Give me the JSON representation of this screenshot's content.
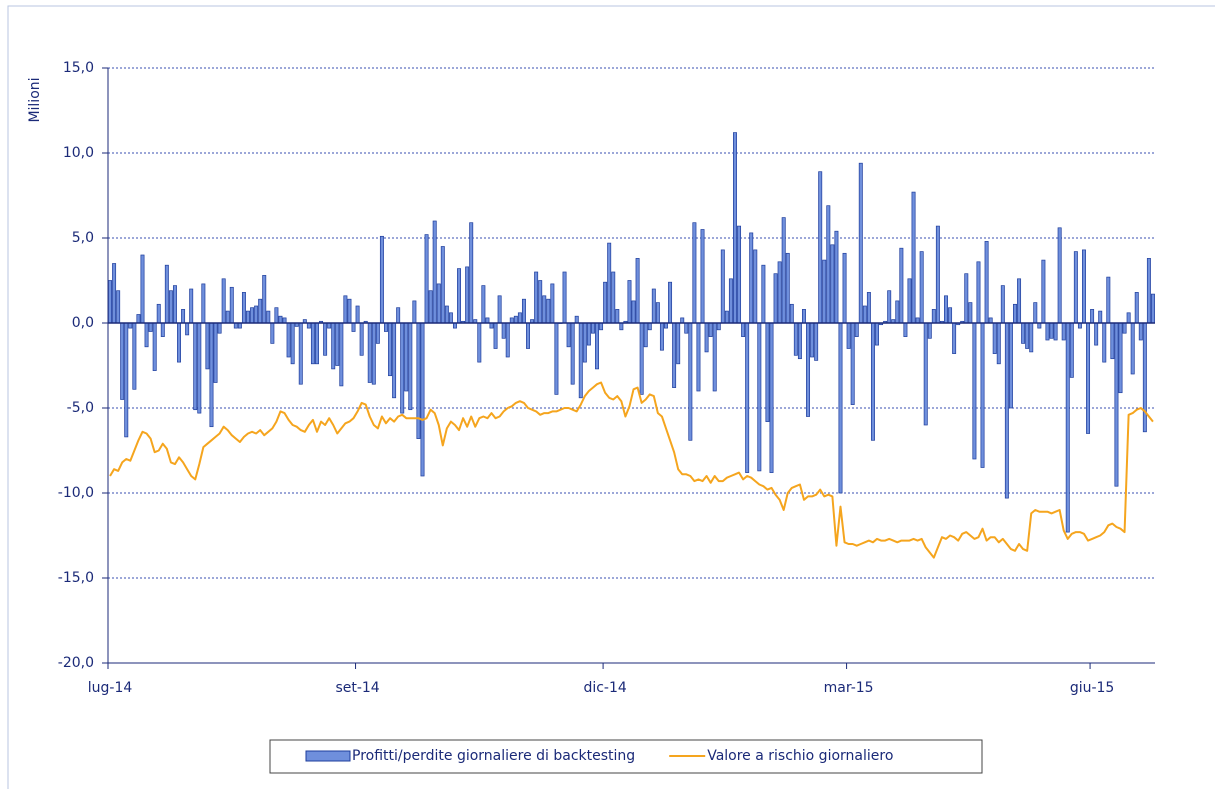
{
  "chart_data": {
    "type": "bar",
    "y_label": "Milioni",
    "ylim": [
      -20,
      15
    ],
    "yticks": [
      {
        "value": -20,
        "label": "-20,0"
      },
      {
        "value": -15,
        "label": "-15,0"
      },
      {
        "value": -10,
        "label": "-10,0"
      },
      {
        "value": -5,
        "label": "-5,0"
      },
      {
        "value": 0,
        "label": "0,0"
      },
      {
        "value": 5,
        "label": "5,0"
      },
      {
        "value": 10,
        "label": "10,0"
      },
      {
        "value": 15,
        "label": "15,0"
      }
    ],
    "grid": true,
    "legend": "bottom",
    "categories": [
      "lug-14",
      null,
      null,
      null,
      null,
      null,
      null,
      null,
      null,
      null,
      null,
      null,
      null,
      null,
      null,
      null,
      null,
      null,
      null,
      null,
      null,
      null,
      null,
      null,
      null,
      null,
      null,
      null,
      null,
      null,
      null,
      null,
      null,
      null,
      null,
      null,
      null,
      null,
      null,
      null,
      null,
      null,
      null,
      null,
      null,
      null,
      null,
      null,
      null,
      null,
      null,
      null,
      null,
      null,
      null,
      null,
      null,
      null,
      null,
      null,
      null,
      "set-14",
      null,
      null,
      null,
      null,
      null,
      null,
      null,
      null,
      null,
      null,
      null,
      null,
      null,
      null,
      null,
      null,
      null,
      null,
      null,
      null,
      null,
      null,
      null,
      null,
      null,
      null,
      null,
      null,
      null,
      null,
      null,
      null,
      null,
      null,
      null,
      null,
      null,
      null,
      null,
      null,
      null,
      null,
      null,
      null,
      null,
      null,
      null,
      null,
      null,
      null,
      null,
      null,
      null,
      null,
      null,
      null,
      null,
      null,
      null,
      null,
      "dic-14",
      null,
      null,
      null,
      null,
      null,
      null,
      null,
      null,
      null,
      null,
      null,
      null,
      null,
      null,
      null,
      null,
      null,
      null,
      null,
      null,
      null,
      null,
      null,
      null,
      null,
      null,
      null,
      null,
      null,
      null,
      null,
      null,
      null,
      null,
      null,
      null,
      null,
      null,
      null,
      null,
      null,
      null,
      null,
      null,
      null,
      null,
      null,
      null,
      null,
      null,
      null,
      null,
      null,
      null,
      null,
      null,
      null,
      null,
      null,
      "mar-15",
      null,
      null,
      null,
      null,
      null,
      null,
      null,
      null,
      null,
      null,
      null,
      null,
      null,
      null,
      null,
      null,
      null,
      null,
      null,
      null,
      null,
      null,
      null,
      null,
      null,
      null,
      null,
      null,
      null,
      null,
      null,
      null,
      null,
      null,
      null,
      null,
      null,
      null,
      null,
      null,
      null,
      null,
      null,
      null,
      null,
      null,
      null,
      null,
      null,
      null,
      null,
      null,
      null,
      null,
      null,
      null,
      null,
      null,
      null,
      "giu-15",
      null,
      null,
      null,
      null,
      null,
      null,
      null,
      null,
      null,
      null,
      null,
      null,
      null,
      null,
      null
    ],
    "series": [
      {
        "name": "Profitti/perdite giornaliere di backtesting",
        "type": "bar",
        "color": "#6f8fdc",
        "values": [
          2.5,
          3.5,
          1.9,
          -4.5,
          -6.7,
          -0.3,
          -3.9,
          0.5,
          4.0,
          -1.4,
          -0.5,
          -2.8,
          1.1,
          -0.8,
          3.4,
          1.9,
          2.2,
          -2.3,
          0.8,
          -0.7,
          2.0,
          -5.1,
          -5.3,
          2.3,
          -2.7,
          -6.1,
          -3.5,
          -0.6,
          2.6,
          0.7,
          2.1,
          -0.3,
          -0.3,
          1.8,
          0.7,
          0.9,
          1.0,
          1.4,
          2.8,
          0.7,
          -1.2,
          0.9,
          0.4,
          0.3,
          -2.0,
          -2.4,
          -0.2,
          -3.6,
          0.2,
          -0.3,
          -2.4,
          -2.4,
          0.1,
          -1.9,
          -0.3,
          -2.7,
          -2.5,
          -3.7,
          1.6,
          1.4,
          -0.5,
          1.0,
          -1.9,
          0.1,
          -3.5,
          -3.6,
          -1.2,
          5.1,
          -0.5,
          -3.1,
          -4.4,
          0.9,
          -5.3,
          -4.0,
          -5.1,
          1.3,
          -6.8,
          -9.0,
          5.2,
          1.9,
          6.0,
          2.3,
          4.5,
          1.0,
          0.6,
          -0.3,
          3.2,
          0.1,
          3.3,
          5.9,
          0.2,
          -2.3,
          2.2,
          0.3,
          -0.3,
          -1.5,
          1.6,
          -0.9,
          -2.0,
          0.3,
          0.4,
          0.6,
          1.4,
          -1.5,
          0.2,
          3.0,
          2.5,
          1.6,
          1.4,
          2.3,
          -4.2,
          0.0,
          3.0,
          -1.4,
          -3.6,
          0.4,
          -4.4,
          -2.3,
          -1.3,
          -0.6,
          -2.7,
          -0.4,
          2.4,
          4.7,
          3.0,
          0.8,
          -0.4,
          0.1,
          2.5,
          1.3,
          3.8,
          -4.2,
          -1.4,
          -0.4,
          2.0,
          1.2,
          -1.6,
          -0.3,
          2.4,
          -3.8,
          -2.4,
          0.3,
          -0.6,
          -6.9,
          5.9,
          -4.0,
          5.5,
          -1.7,
          -0.8,
          -4.0,
          -0.4,
          4.3,
          0.7,
          2.6,
          11.2,
          5.7,
          -0.8,
          -8.8,
          5.3,
          4.3,
          -8.7,
          3.4,
          -5.8,
          -8.8,
          2.9,
          3.6,
          6.2,
          4.1,
          1.1,
          -1.9,
          -2.1,
          0.8,
          -5.5,
          -2.0,
          -2.2,
          8.9,
          3.7,
          6.9,
          4.6,
          5.4,
          -10.0,
          4.1,
          -1.5,
          -4.8,
          -0.8,
          9.4,
          1.0,
          1.8,
          -6.9,
          -1.3,
          -0.1,
          0.1,
          1.9,
          0.2,
          1.3,
          4.4,
          -0.8,
          2.6,
          7.7,
          0.3,
          4.2,
          -6.0,
          -0.9,
          0.8,
          5.7,
          0.1,
          1.6,
          0.9,
          -1.8,
          -0.1,
          0.1,
          2.9,
          1.2,
          -8.0,
          3.6,
          -8.5,
          4.8,
          0.3,
          -1.8,
          -2.4,
          2.2,
          -10.3,
          -5.0,
          1.1,
          2.6,
          -1.2,
          -1.5,
          -1.7,
          1.2,
          -0.3,
          3.7,
          -1.0,
          -0.9,
          -1.0,
          5.6,
          -1.0,
          -12.3,
          -3.2,
          4.2,
          -0.3,
          4.3,
          -6.5,
          0.8,
          -1.3,
          0.7,
          -2.3,
          2.7,
          -2.1,
          -9.6,
          -4.1,
          -0.6,
          0.6,
          -3.0,
          1.8,
          -1.0,
          -6.4,
          3.8,
          1.7
        ]
      },
      {
        "name": "Valore a rischio giornaliero",
        "type": "line",
        "color": "#f5a51e",
        "values": [
          -9.0,
          -8.6,
          -8.7,
          -8.2,
          -8.0,
          -8.1,
          -7.5,
          -6.9,
          -6.4,
          -6.5,
          -6.8,
          -7.6,
          -7.5,
          -7.1,
          -7.4,
          -8.2,
          -8.3,
          -7.9,
          -8.2,
          -8.6,
          -9.0,
          -9.2,
          -8.3,
          -7.3,
          -7.1,
          -6.9,
          -6.7,
          -6.5,
          -6.1,
          -6.3,
          -6.6,
          -6.8,
          -7.0,
          -6.7,
          -6.5,
          -6.4,
          -6.5,
          -6.3,
          -6.6,
          -6.4,
          -6.2,
          -5.8,
          -5.2,
          -5.3,
          -5.7,
          -6.0,
          -6.1,
          -6.3,
          -6.4,
          -6.0,
          -5.7,
          -6.4,
          -5.8,
          -6.0,
          -5.6,
          -6.0,
          -6.5,
          -6.2,
          -5.9,
          -5.8,
          -5.6,
          -5.2,
          -4.7,
          -4.8,
          -5.5,
          -6.0,
          -6.2,
          -5.5,
          -5.9,
          -5.6,
          -5.8,
          -5.5,
          -5.4,
          -5.6,
          -5.6,
          -5.6,
          -5.6,
          -5.7,
          -5.6,
          -5.1,
          -5.3,
          -6.0,
          -7.2,
          -6.2,
          -5.8,
          -6.0,
          -6.3,
          -5.6,
          -6.1,
          -5.5,
          -6.1,
          -5.6,
          -5.5,
          -5.6,
          -5.3,
          -5.6,
          -5.5,
          -5.2,
          -5.0,
          -4.9,
          -4.7,
          -4.6,
          -4.7,
          -5.0,
          -5.1,
          -5.2,
          -5.4,
          -5.3,
          -5.3,
          -5.2,
          -5.2,
          -5.1,
          -5.0,
          -5.0,
          -5.1,
          -5.2,
          -4.8,
          -4.3,
          -4.0,
          -3.8,
          -3.6,
          -3.5,
          -4.1,
          -4.4,
          -4.5,
          -4.3,
          -4.6,
          -5.5,
          -4.9,
          -3.9,
          -3.8,
          -4.7,
          -4.5,
          -4.2,
          -4.3,
          -5.3,
          -5.5,
          -6.2,
          -6.9,
          -7.6,
          -8.6,
          -8.9,
          -8.9,
          -9.0,
          -9.3,
          -9.2,
          -9.3,
          -9.0,
          -9.4,
          -9.0,
          -9.3,
          -9.3,
          -9.1,
          -9.0,
          -8.9,
          -8.8,
          -9.2,
          -9.0,
          -9.1,
          -9.3,
          -9.5,
          -9.6,
          -9.8,
          -9.7,
          -10.1,
          -10.4,
          -11.0,
          -10.0,
          -9.7,
          -9.6,
          -9.5,
          -10.4,
          -10.2,
          -10.2,
          -10.1,
          -9.8,
          -10.2,
          -10.1,
          -10.2,
          -13.1,
          -10.8,
          -12.9,
          -13.0,
          -13.0,
          -13.1,
          -13.0,
          -12.9,
          -12.8,
          -12.9,
          -12.7,
          -12.8,
          -12.8,
          -12.7,
          -12.8,
          -12.9,
          -12.8,
          -12.8,
          -12.8,
          -12.7,
          -12.8,
          -12.7,
          -13.2,
          -13.5,
          -13.8,
          -13.2,
          -12.6,
          -12.7,
          -12.5,
          -12.6,
          -12.8,
          -12.4,
          -12.3,
          -12.5,
          -12.7,
          -12.6,
          -12.1,
          -12.8,
          -12.6,
          -12.6,
          -12.9,
          -12.7,
          -13.0,
          -13.3,
          -13.4,
          -13.0,
          -13.3,
          -13.4,
          -11.2,
          -11.0,
          -11.1,
          -11.1,
          -11.1,
          -11.2,
          -11.1,
          -11.0,
          -12.2,
          -12.7,
          -12.4,
          -12.3,
          -12.3,
          -12.4,
          -12.8,
          -12.7,
          -12.6,
          -12.5,
          -12.3,
          -11.9,
          -11.8,
          -12.0,
          -12.1,
          -12.3,
          -5.4,
          -5.3,
          -5.1,
          -5.0,
          -5.2,
          -5.5,
          -5.8
        ]
      }
    ]
  }
}
